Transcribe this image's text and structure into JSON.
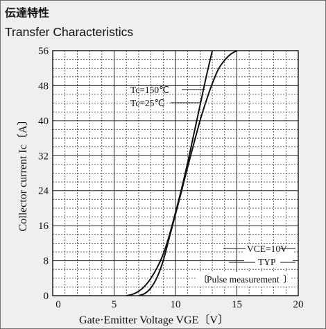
{
  "header": {
    "title_jp": "伝達特性",
    "title_en": "Transfer Characteristics"
  },
  "chart_data": {
    "type": "line",
    "xlabel": "Gate·Emitter Voltage   VGE〔V〕",
    "ylabel": "Collector current   Ic〔A〕",
    "xlim": [
      0,
      20
    ],
    "ylim": [
      0,
      56
    ],
    "x_ticks": [
      0,
      5,
      10,
      15,
      20
    ],
    "y_ticks": [
      0,
      8,
      16,
      24,
      32,
      40,
      48,
      56
    ],
    "grid": true,
    "series": [
      {
        "name": "Tc=150℃",
        "x": [
          6.0,
          6.5,
          7.0,
          7.5,
          8.0,
          8.5,
          9.0,
          9.5,
          10.0,
          10.5,
          11.0,
          11.5,
          12.0,
          12.5,
          13.0
        ],
        "y": [
          0,
          0.3,
          1.0,
          2.2,
          4.0,
          6.4,
          9.5,
          13.8,
          19.0,
          24.5,
          30.5,
          37.0,
          43.5,
          50.0,
          56.0
        ]
      },
      {
        "name": "Tc=25℃",
        "x": [
          7.0,
          7.5,
          8.0,
          8.5,
          9.0,
          9.5,
          10.0,
          10.5,
          11.0,
          11.5,
          12.0,
          12.5,
          13.0,
          13.5,
          14.0,
          14.5,
          15.0
        ],
        "y": [
          0,
          0.5,
          1.8,
          4.2,
          8.0,
          13.3,
          18.6,
          24.0,
          29.5,
          34.8,
          40.0,
          44.5,
          48.5,
          51.8,
          53.8,
          55.2,
          56.0
        ]
      }
    ],
    "annotations": {
      "conditions": [
        "VCE=10V",
        "TYP"
      ],
      "pulse": "Pulse measurement"
    }
  }
}
